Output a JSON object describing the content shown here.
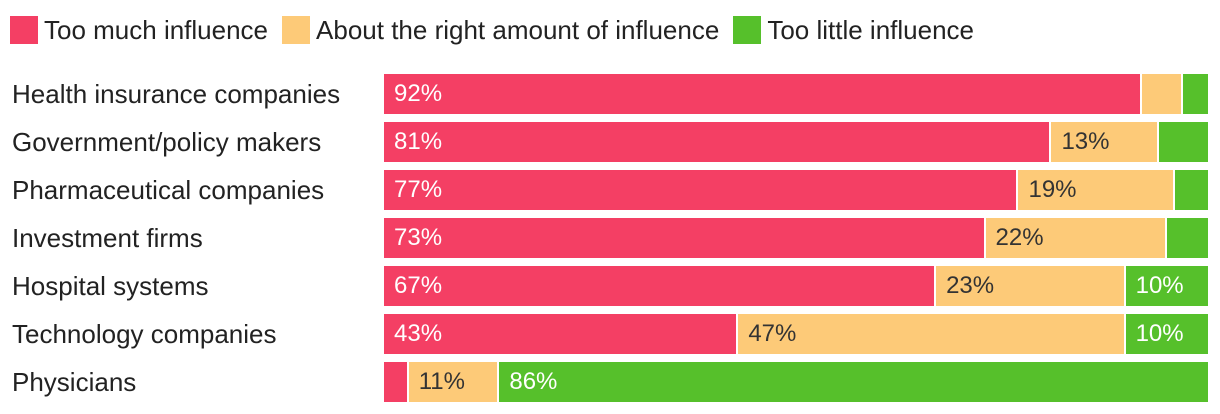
{
  "legend": {
    "items": [
      {
        "label": "Too much influence",
        "color": "#f43f64"
      },
      {
        "label": "About the right amount of influence",
        "color": "#fdca78"
      },
      {
        "label": "Too little influence",
        "color": "#56c02b"
      }
    ]
  },
  "chart_data": {
    "type": "bar",
    "orientation": "horizontal",
    "stacked": true,
    "normalized": true,
    "title": "",
    "xlabel": "",
    "ylabel": "",
    "xlim": [
      0,
      100
    ],
    "categories": [
      "Health insurance companies",
      "Government/policy makers",
      "Pharmaceutical companies",
      "Investment firms",
      "Hospital systems",
      "Technology companies",
      "Physicians"
    ],
    "series": [
      {
        "name": "Too much influence",
        "color": "#f43f64",
        "values": [
          92,
          81,
          77,
          73,
          67,
          43,
          3
        ],
        "labels": [
          "92%",
          "81%",
          "77%",
          "73%",
          "67%",
          "43%",
          ""
        ]
      },
      {
        "name": "About the right amount of influence",
        "color": "#fdca78",
        "values": [
          5,
          13,
          19,
          22,
          23,
          47,
          11
        ],
        "labels": [
          "",
          "13%",
          "19%",
          "22%",
          "23%",
          "47%",
          "11%"
        ]
      },
      {
        "name": "Too little influence",
        "color": "#56c02b",
        "values": [
          3,
          6,
          4,
          5,
          10,
          10,
          86
        ],
        "labels": [
          "",
          "",
          "",
          "",
          "10%",
          "10%",
          "86%"
        ]
      }
    ],
    "label_colors": {
      "Too much influence": "#ffffff",
      "About the right amount of influence": "#333333",
      "Too little influence": "#ffffff"
    },
    "legend_position": "top-left",
    "grid": false
  }
}
